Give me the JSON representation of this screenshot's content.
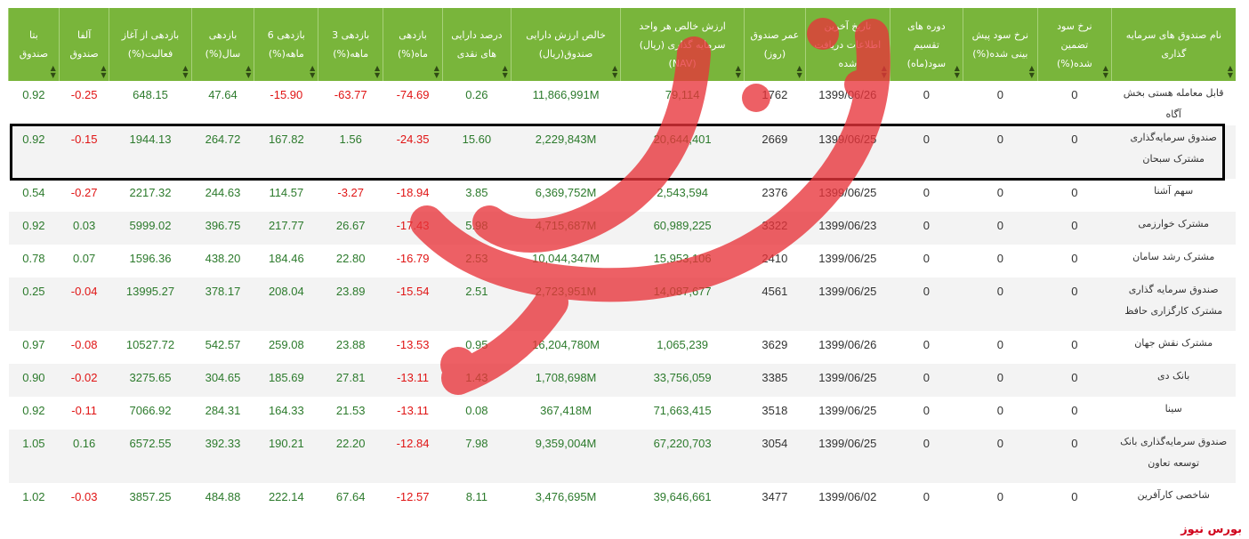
{
  "headers": [
    "نام صندوق های سرمایه گذاری",
    "نرخ سود تضمین شده(%)",
    "نرخ سود پیش بینی شده(%)",
    "دوره های تقسیم سود(ماه)",
    "تاریخ آخرین اطلاعات دریافت شده",
    "عمر صندوق (روز)",
    "ارزش خالص هر واحد سرمایه گذاری (ریال)(NAV)",
    "خالص ارزش دارایی صندوق(ریال)",
    "درصد دارایی های نقدی",
    "بازدهی ماه(%)",
    "بازدهی 3 ماهه(%)",
    "بازدهی 6 ماهه(%)",
    "بازدهی سال(%)",
    "بازدهی از آغاز فعالیت(%)",
    "آلفا صندوق",
    "بتا صندوق"
  ],
  "rows": [
    {
      "name": "قابل معامله هستی بخش آگاه",
      "guaranteed": "0",
      "forecast": "0",
      "period": "0",
      "date": "1399/06/26",
      "age": "1762",
      "nav": "79,114",
      "net_assets": "11,866,991M",
      "cash": "0.26",
      "r1m": "74.69-",
      "r3m": "63.77-",
      "r6m": "15.90-",
      "r1y": "47.64",
      "r_since": "648.15",
      "alpha": "0.25-",
      "beta": "0.92"
    },
    {
      "name": "صندوق سرمایه‌گذاری مشترک سبحان",
      "guaranteed": "0",
      "forecast": "0",
      "period": "0",
      "date": "1399/06/25",
      "age": "2669",
      "nav": "20,644,401",
      "net_assets": "2,229,843M",
      "cash": "15.60",
      "r1m": "24.35-",
      "r3m": "1.56",
      "r6m": "167.82",
      "r1y": "264.72",
      "r_since": "1944.13",
      "alpha": "0.15-",
      "beta": "0.92"
    },
    {
      "name": "سهم آشنا",
      "guaranteed": "0",
      "forecast": "0",
      "period": "0",
      "date": "1399/06/25",
      "age": "2376",
      "nav": "2,543,594",
      "net_assets": "6,369,752M",
      "cash": "3.85",
      "r1m": "18.94-",
      "r3m": "3.27-",
      "r6m": "114.57",
      "r1y": "244.63",
      "r_since": "2217.32",
      "alpha": "0.27-",
      "beta": "0.54"
    },
    {
      "name": "مشترک خوارزمی",
      "guaranteed": "0",
      "forecast": "0",
      "period": "0",
      "date": "1399/06/23",
      "age": "3322",
      "nav": "60,989,225",
      "net_assets": "4,715,687M",
      "cash": "5.98",
      "r1m": "17.43-",
      "r3m": "26.67",
      "r6m": "217.77",
      "r1y": "396.75",
      "r_since": "5999.02",
      "alpha": "0.03",
      "beta": "0.92"
    },
    {
      "name": "مشترک رشد سامان",
      "guaranteed": "0",
      "forecast": "0",
      "period": "0",
      "date": "1399/06/25",
      "age": "2410",
      "nav": "15,953,106",
      "net_assets": "10,044,347M",
      "cash": "2.53",
      "r1m": "16.79-",
      "r3m": "22.80",
      "r6m": "184.46",
      "r1y": "438.20",
      "r_since": "1596.36",
      "alpha": "0.07",
      "beta": "0.78"
    },
    {
      "name": "صندوق سرمایه گذاری مشترک کارگزاری حافظ",
      "guaranteed": "0",
      "forecast": "0",
      "period": "0",
      "date": "1399/06/25",
      "age": "4561",
      "nav": "14,087,677",
      "net_assets": "2,723,951M",
      "cash": "2.51",
      "r1m": "15.54-",
      "r3m": "23.89",
      "r6m": "208.04",
      "r1y": "378.17",
      "r_since": "13995.27",
      "alpha": "0.04-",
      "beta": "0.25"
    },
    {
      "name": "مشترک نقش جهان",
      "guaranteed": "0",
      "forecast": "0",
      "period": "0",
      "date": "1399/06/26",
      "age": "3629",
      "nav": "1,065,239",
      "net_assets": "16,204,780M",
      "cash": "0.95",
      "r1m": "13.53-",
      "r3m": "23.88",
      "r6m": "259.08",
      "r1y": "542.57",
      "r_since": "10527.72",
      "alpha": "0.08-",
      "beta": "0.97"
    },
    {
      "name": "بانک دی",
      "guaranteed": "0",
      "forecast": "0",
      "period": "0",
      "date": "1399/06/25",
      "age": "3385",
      "nav": "33,756,059",
      "net_assets": "1,708,698M",
      "cash": "1.43",
      "r1m": "13.11-",
      "r3m": "27.81",
      "r6m": "185.69",
      "r1y": "304.65",
      "r_since": "3275.65",
      "alpha": "0.02-",
      "beta": "0.90"
    },
    {
      "name": "سینا",
      "guaranteed": "0",
      "forecast": "0",
      "period": "0",
      "date": "1399/06/25",
      "age": "3518",
      "nav": "71,663,415",
      "net_assets": "367,418M",
      "cash": "0.08",
      "r1m": "13.11-",
      "r3m": "21.53",
      "r6m": "164.33",
      "r1y": "284.31",
      "r_since": "7066.92",
      "alpha": "0.11-",
      "beta": "0.92"
    },
    {
      "name": "صندوق سرمایه‌گذاری بانک توسعه تعاون",
      "guaranteed": "0",
      "forecast": "0",
      "period": "0",
      "date": "1399/06/25",
      "age": "3054",
      "nav": "67,220,703",
      "net_assets": "9,359,004M",
      "cash": "7.98",
      "r1m": "12.84-",
      "r3m": "22.20",
      "r6m": "190.21",
      "r1y": "392.33",
      "r_since": "6572.55",
      "alpha": "0.16",
      "beta": "1.05"
    },
    {
      "name": "شاخصی کارآفرین",
      "guaranteed": "0",
      "forecast": "0",
      "period": "0",
      "date": "1399/06/02",
      "age": "3477",
      "nav": "39,646,661",
      "net_assets": "3,476,695M",
      "cash": "8.11",
      "r1m": "12.57-",
      "r3m": "67.64",
      "r6m": "222.14",
      "r1y": "484.88",
      "r_since": "3857.25",
      "alpha": "0.03-",
      "beta": "1.02"
    }
  ],
  "two_line_rows": [
    1,
    5,
    9
  ],
  "highlighted_row": 1,
  "footer": {
    "logo_text": "بورس نیوز"
  },
  "colors": {
    "header_bg": "#79b53b",
    "positive": "#2c7a2c",
    "negative": "#e01414",
    "watermark": "#e8343a"
  }
}
